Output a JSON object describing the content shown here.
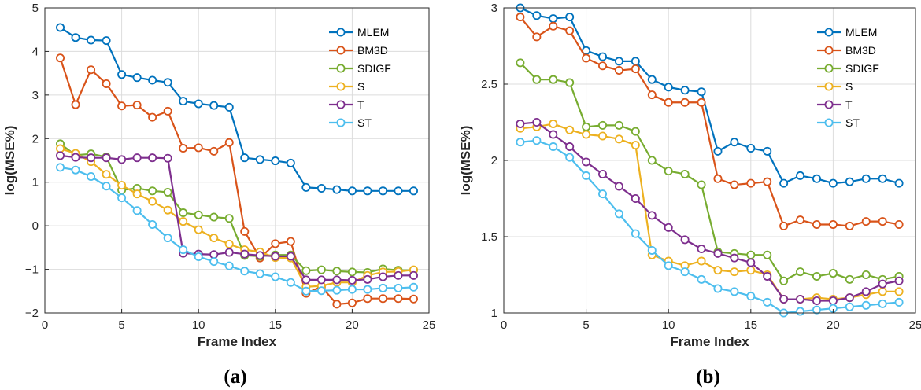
{
  "figure": {
    "colors": {
      "MLEM": "#0072BD",
      "BM3D": "#D95319",
      "SDIGF": "#77AC30",
      "S": "#EDB120",
      "T": "#7E2F8E",
      "ST": "#4DBEEE",
      "grid": "#dcdcdc",
      "axis": "#262626"
    }
  },
  "chart_data": [
    {
      "type": "line",
      "panel_label": "(a)",
      "xlabel": "Frame Index",
      "ylabel": "log(MSE%)",
      "xlim": [
        0,
        25
      ],
      "ylim": [
        -2,
        5
      ],
      "xticks": [
        0,
        5,
        10,
        15,
        20,
        25
      ],
      "yticks": [
        -2,
        -1,
        0,
        1,
        2,
        3,
        4,
        5
      ],
      "grid": true,
      "legend_position": "top-right",
      "x": [
        1,
        2,
        3,
        4,
        5,
        6,
        7,
        8,
        9,
        10,
        11,
        12,
        13,
        14,
        15,
        16,
        17,
        18,
        19,
        20,
        21,
        22,
        23,
        24
      ],
      "series": [
        {
          "name": "MLEM",
          "values": [
            4.55,
            4.32,
            4.26,
            4.25,
            3.47,
            3.4,
            3.34,
            3.29,
            2.86,
            2.8,
            2.76,
            2.72,
            1.56,
            1.52,
            1.49,
            1.44,
            0.88,
            0.86,
            0.83,
            0.8,
            0.8,
            0.8,
            0.8,
            0.8
          ]
        },
        {
          "name": "BM3D",
          "values": [
            3.85,
            2.78,
            3.58,
            3.26,
            2.75,
            2.77,
            2.49,
            2.63,
            1.78,
            1.79,
            1.71,
            1.91,
            -0.13,
            -0.74,
            -0.41,
            -0.36,
            -1.55,
            -1.4,
            -1.8,
            -1.77,
            -1.67,
            -1.67,
            -1.67,
            -1.68
          ]
        },
        {
          "name": "SDIGF",
          "values": [
            1.88,
            1.62,
            1.65,
            1.58,
            0.82,
            0.86,
            0.8,
            0.77,
            0.3,
            0.25,
            0.2,
            0.17,
            -0.68,
            -0.7,
            -0.67,
            -0.67,
            -1.03,
            -1.01,
            -1.04,
            -1.06,
            -1.07,
            -0.99,
            -1.02,
            -1.02
          ]
        },
        {
          "name": "S",
          "values": [
            1.77,
            1.66,
            1.47,
            1.18,
            0.93,
            0.73,
            0.56,
            0.36,
            0.1,
            -0.09,
            -0.28,
            -0.42,
            -0.55,
            -0.6,
            -0.73,
            -0.74,
            -1.4,
            -1.38,
            -1.3,
            -1.3,
            -1.14,
            -1.06,
            -1.05,
            -1.01
          ]
        },
        {
          "name": "T",
          "values": [
            1.61,
            1.57,
            1.56,
            1.56,
            1.52,
            1.56,
            1.56,
            1.55,
            -0.63,
            -0.65,
            -0.66,
            -0.61,
            -0.65,
            -0.68,
            -0.7,
            -0.7,
            -1.24,
            -1.24,
            -1.24,
            -1.25,
            -1.23,
            -1.17,
            -1.14,
            -1.14
          ]
        },
        {
          "name": "ST",
          "values": [
            1.34,
            1.28,
            1.13,
            0.91,
            0.64,
            0.35,
            0.03,
            -0.28,
            -0.55,
            -0.71,
            -0.82,
            -0.92,
            -1.04,
            -1.1,
            -1.17,
            -1.3,
            -1.5,
            -1.49,
            -1.48,
            -1.46,
            -1.46,
            -1.43,
            -1.43,
            -1.41
          ]
        }
      ]
    },
    {
      "type": "line",
      "panel_label": "(b)",
      "xlabel": "Frame Index",
      "ylabel": "log(MSE%)",
      "xlim": [
        0,
        25
      ],
      "ylim": [
        1,
        3
      ],
      "xticks": [
        0,
        5,
        10,
        15,
        20,
        25
      ],
      "yticks": [
        1,
        1.5,
        2,
        2.5,
        3
      ],
      "grid": true,
      "legend_position": "top-right",
      "x": [
        1,
        2,
        3,
        4,
        5,
        6,
        7,
        8,
        9,
        10,
        11,
        12,
        13,
        14,
        15,
        16,
        17,
        18,
        19,
        20,
        21,
        22,
        23,
        24
      ],
      "series": [
        {
          "name": "MLEM",
          "values": [
            3.0,
            2.95,
            2.93,
            2.94,
            2.72,
            2.68,
            2.65,
            2.65,
            2.53,
            2.48,
            2.46,
            2.45,
            2.06,
            2.12,
            2.08,
            2.06,
            1.85,
            1.9,
            1.88,
            1.85,
            1.86,
            1.88,
            1.88,
            1.85
          ]
        },
        {
          "name": "BM3D",
          "values": [
            2.94,
            2.81,
            2.88,
            2.85,
            2.67,
            2.62,
            2.59,
            2.6,
            2.43,
            2.38,
            2.38,
            2.38,
            1.88,
            1.84,
            1.85,
            1.86,
            1.57,
            1.61,
            1.58,
            1.58,
            1.57,
            1.6,
            1.6,
            1.58
          ]
        },
        {
          "name": "SDIGF",
          "values": [
            2.64,
            2.53,
            2.53,
            2.51,
            2.22,
            2.23,
            2.23,
            2.19,
            2.0,
            1.93,
            1.91,
            1.84,
            1.4,
            1.39,
            1.38,
            1.38,
            1.21,
            1.27,
            1.24,
            1.26,
            1.22,
            1.25,
            1.22,
            1.24
          ]
        },
        {
          "name": "S",
          "values": [
            2.21,
            2.22,
            2.24,
            2.2,
            2.17,
            2.16,
            2.14,
            2.1,
            1.38,
            1.34,
            1.31,
            1.34,
            1.28,
            1.27,
            1.28,
            1.25,
            1.09,
            1.09,
            1.1,
            1.09,
            1.1,
            1.12,
            1.14,
            1.14
          ]
        },
        {
          "name": "T",
          "values": [
            2.24,
            2.25,
            2.17,
            2.09,
            1.99,
            1.91,
            1.83,
            1.75,
            1.64,
            1.56,
            1.48,
            1.42,
            1.39,
            1.36,
            1.33,
            1.24,
            1.09,
            1.09,
            1.08,
            1.08,
            1.1,
            1.14,
            1.19,
            1.21
          ]
        },
        {
          "name": "ST",
          "values": [
            2.12,
            2.13,
            2.09,
            2.02,
            1.9,
            1.78,
            1.65,
            1.52,
            1.41,
            1.31,
            1.27,
            1.22,
            1.16,
            1.14,
            1.11,
            1.07,
            1.0,
            1.01,
            1.02,
            1.03,
            1.04,
            1.05,
            1.06,
            1.07
          ]
        }
      ]
    }
  ]
}
